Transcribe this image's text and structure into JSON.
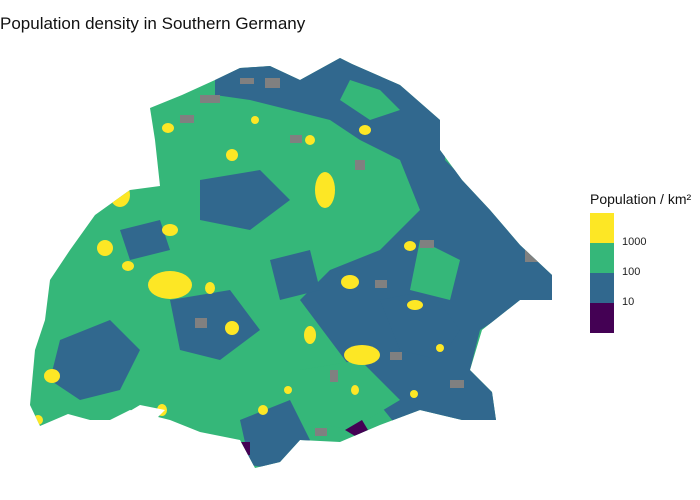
{
  "title": "Population density in Southern Germany",
  "legend": {
    "title": "Population / km²",
    "breaks": [
      "1000",
      "100",
      "10"
    ],
    "colors": [
      "#fde725",
      "#35b779",
      "#31688e",
      "#440154"
    ],
    "na_color": "#808080"
  }
}
